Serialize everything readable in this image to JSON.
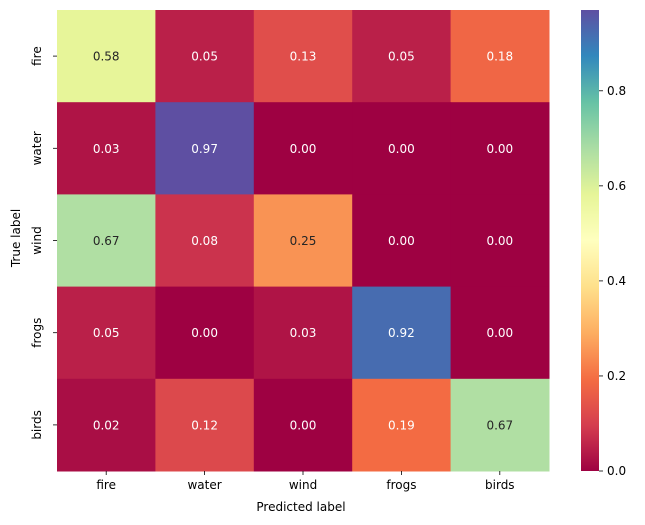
{
  "chart_data": {
    "type": "heatmap",
    "x_categories": [
      "fire",
      "water",
      "wind",
      "frogs",
      "birds"
    ],
    "y_categories": [
      "fire",
      "water",
      "wind",
      "frogs",
      "birds"
    ],
    "values": [
      [
        0.58,
        0.05,
        0.13,
        0.05,
        0.18
      ],
      [
        0.03,
        0.97,
        0.0,
        0.0,
        0.0
      ],
      [
        0.67,
        0.08,
        0.25,
        0.0,
        0.0
      ],
      [
        0.05,
        0.0,
        0.03,
        0.92,
        0.0
      ],
      [
        0.02,
        0.12,
        0.0,
        0.19,
        0.67
      ]
    ],
    "xlabel": "Predicted label",
    "ylabel": "True label",
    "colormap": "Spectral",
    "colorbar": {
      "range": [
        0,
        0.97
      ],
      "ticks": [
        0.0,
        0.2,
        0.4,
        0.6,
        0.8
      ],
      "tick_labels": [
        "0.0",
        "0.2",
        "0.4",
        "0.6",
        "0.8"
      ]
    },
    "value_format": "2 decimals"
  }
}
